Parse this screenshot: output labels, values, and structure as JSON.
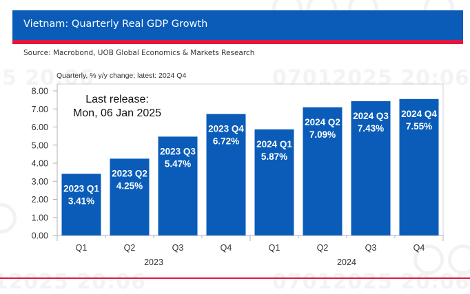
{
  "header": {
    "title": "Vietnam: Quarterly Real GDP Growth",
    "source": "Source: Macrobond, UOB Global Economics & Markets Research",
    "colors": {
      "banner": "#0a5cb8",
      "stripe": "#e3173e",
      "bar": "#0a5cb8"
    }
  },
  "watermark": {
    "text": "07012025 20:06"
  },
  "chart_data": {
    "type": "bar",
    "title": "Vietnam: Quarterly Real GDP Growth",
    "subtitle": "Quarterly, % y/y change; latest: 2024 Q4",
    "annotation": [
      "Last release:",
      "Mon, 06 Jan 2025"
    ],
    "categories": [
      "Q1",
      "Q2",
      "Q3",
      "Q4",
      "Q1",
      "Q2",
      "Q3",
      "Q4"
    ],
    "groups": [
      {
        "label": "2023",
        "span": [
          0,
          3
        ]
      },
      {
        "label": "2024",
        "span": [
          4,
          7
        ]
      }
    ],
    "values": [
      3.41,
      4.25,
      5.47,
      6.72,
      5.87,
      7.09,
      7.43,
      7.55
    ],
    "data_labels": [
      [
        "2023 Q1",
        "3.41%"
      ],
      [
        "2023 Q2",
        "4.25%"
      ],
      [
        "2023 Q3",
        "5.47%"
      ],
      [
        "2023 Q4",
        "6.72%"
      ],
      [
        "2024 Q1",
        "5.87%"
      ],
      [
        "2024 Q2",
        "7.09%"
      ],
      [
        "2024 Q3",
        "7.43%"
      ],
      [
        "2024 Q4",
        "7.55%"
      ]
    ],
    "ylim": [
      0,
      8
    ],
    "yticks": [
      "0.00",
      "1.00",
      "2.00",
      "3.00",
      "4.00",
      "5.00",
      "6.00",
      "7.00",
      "8.00"
    ],
    "xlabel": "",
    "ylabel": "",
    "grid": false,
    "legend": "none"
  }
}
